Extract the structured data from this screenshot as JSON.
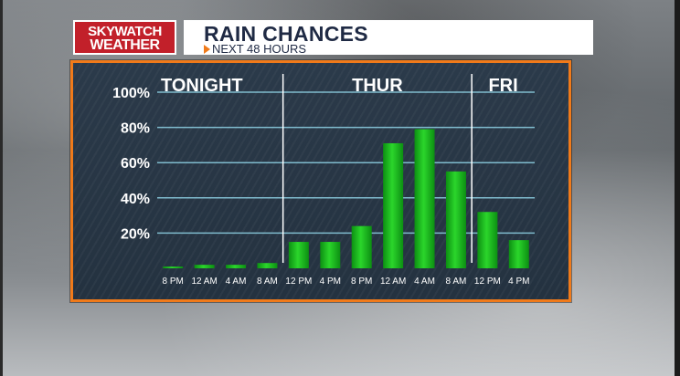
{
  "branding": {
    "logo_line1": "SKYWATCH",
    "logo_line2": "WEATHER",
    "logo_color": "#c2202a"
  },
  "header": {
    "title": "RAIN CHANCES",
    "subtitle": "NEXT 48 HOURS",
    "subtitle_icon": "orange-right-triangle-icon"
  },
  "colors": {
    "panel_border": "#f07a1a",
    "panel_bg": "#2b3a4a",
    "bar_green": "#2bd62b",
    "gridline": "#8fd3e6"
  },
  "chart_data": {
    "type": "bar",
    "title": "RAIN CHANCES",
    "subtitle": "NEXT 48 HOURS",
    "categories": [
      "8 PM",
      "12 AM",
      "4 AM",
      "8 AM",
      "12 PM",
      "4 PM",
      "8 PM",
      "12 AM",
      "4 AM",
      "8 AM",
      "12 PM",
      "4 PM"
    ],
    "values": [
      1,
      2,
      2,
      3,
      15,
      15,
      24,
      71,
      79,
      55,
      32,
      16
    ],
    "unit": "%",
    "yticks": [
      "20%",
      "40%",
      "60%",
      "80%",
      "100%"
    ],
    "ytick_values": [
      20,
      40,
      60,
      80,
      100
    ],
    "ylim": [
      0,
      100
    ],
    "grid": true,
    "periods": [
      {
        "label": "TONIGHT",
        "start_index": 0,
        "end_index": 3
      },
      {
        "label": "THUR",
        "start_index": 4,
        "end_index": 9
      },
      {
        "label": "FRI",
        "start_index": 10,
        "end_index": 11
      }
    ]
  }
}
